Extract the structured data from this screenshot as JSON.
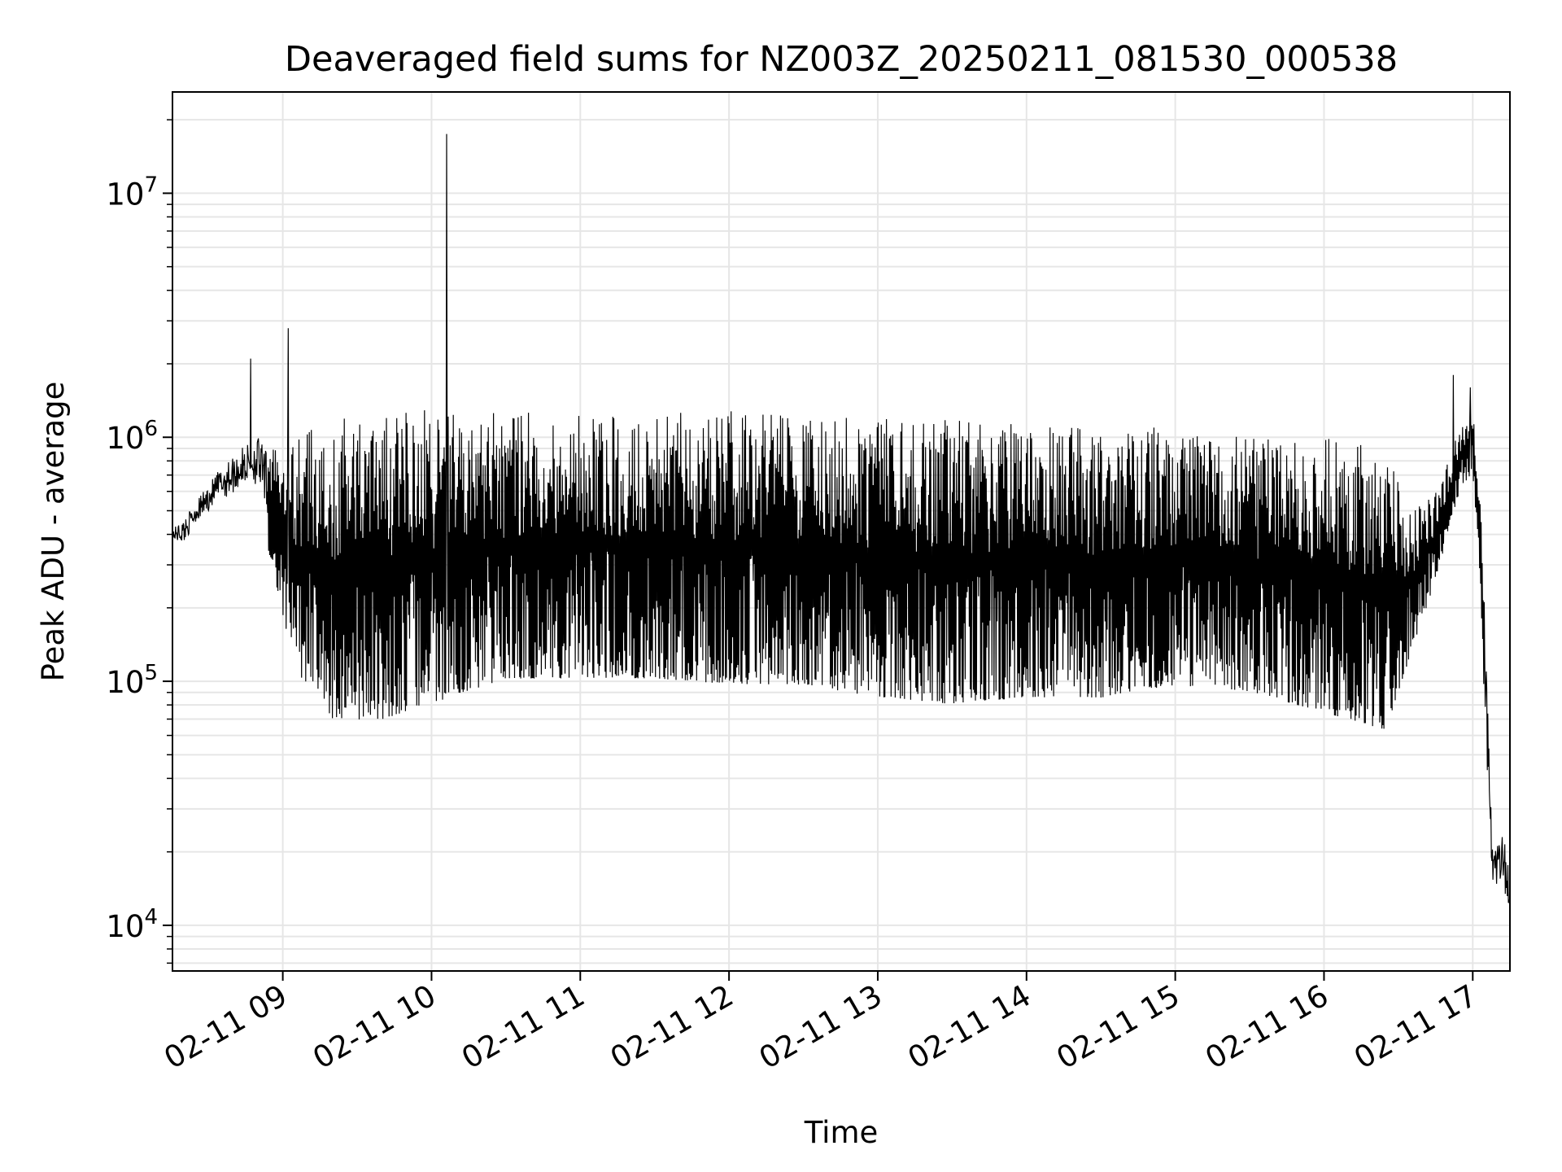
{
  "chart_data": {
    "type": "line",
    "title": "Deaveraged field sums for NZ003Z_20250211_081530_000538",
    "xlabel": "Time",
    "ylabel": "Peak ADU - average",
    "xscale": "time",
    "yscale": "log",
    "xlim": [
      "2025-02-11 08:15:30",
      "2025-02-11 17:15"
    ],
    "ylim": [
      6500,
      26000000
    ],
    "x_ticks": [
      "02-11 09",
      "02-11 10",
      "02-11 11",
      "02-11 12",
      "02-11 13",
      "02-11 14",
      "02-11 15",
      "02-11 16",
      "02-11 17"
    ],
    "x_tick_hours": [
      9,
      10,
      11,
      12,
      13,
      14,
      15,
      16,
      17
    ],
    "y_ticks": [
      {
        "value": 10000,
        "base": "10",
        "exp": "4"
      },
      {
        "value": 100000,
        "base": "10",
        "exp": "5"
      },
      {
        "value": 1000000,
        "base": "10",
        "exp": "6"
      },
      {
        "value": 10000000,
        "base": "10",
        "exp": "7"
      }
    ],
    "grid": true,
    "line_color": "#000000",
    "grid_color": "#e6e6e6",
    "series": [
      {
        "envelope_points": [
          {
            "time": "2025-02-11 08:15:30",
            "low": 350000,
            "high": 430000
          },
          {
            "time": "2025-02-11 08:20",
            "low": 320000,
            "high": 480000
          },
          {
            "time": "2025-02-11 08:25",
            "low": 400000,
            "high": 560000
          },
          {
            "time": "2025-02-11 08:35",
            "low": 450000,
            "high": 800000
          },
          {
            "time": "2025-02-11 08:45",
            "low": 500000,
            "high": 1000000
          },
          {
            "time": "2025-02-11 08:50",
            "low": 480000,
            "high": 1100000
          },
          {
            "time": "2025-02-11 08:55",
            "low": 300000,
            "high": 900000
          },
          {
            "time": "2025-02-11 09:05",
            "low": 100000,
            "high": 1000000
          },
          {
            "time": "2025-02-11 09:20",
            "low": 60000,
            "high": 1200000
          },
          {
            "time": "2025-02-11 09:40",
            "low": 60000,
            "high": 1250000
          },
          {
            "time": "2025-02-11 10:00",
            "low": 70000,
            "high": 1300000
          },
          {
            "time": "2025-02-11 10:30",
            "low": 90000,
            "high": 1250000
          },
          {
            "time": "2025-02-11 11:00",
            "low": 90000,
            "high": 1300000
          },
          {
            "time": "2025-02-11 11:30",
            "low": 90000,
            "high": 1300000
          },
          {
            "time": "2025-02-11 12:00",
            "low": 85000,
            "high": 1300000
          },
          {
            "time": "2025-02-11 12:30",
            "low": 85000,
            "high": 1200000
          },
          {
            "time": "2025-02-11 13:00",
            "low": 75000,
            "high": 1200000
          },
          {
            "time": "2025-02-11 13:30",
            "low": 70000,
            "high": 1200000
          },
          {
            "time": "2025-02-11 14:00",
            "low": 75000,
            "high": 1150000
          },
          {
            "time": "2025-02-11 14:30",
            "low": 75000,
            "high": 1100000
          },
          {
            "time": "2025-02-11 15:00",
            "low": 85000,
            "high": 1100000
          },
          {
            "time": "2025-02-11 15:30",
            "low": 80000,
            "high": 1000000
          },
          {
            "time": "2025-02-11 16:00",
            "low": 65000,
            "high": 1000000
          },
          {
            "time": "2025-02-11 16:25",
            "low": 55000,
            "high": 900000
          },
          {
            "time": "2025-02-11 16:35",
            "low": 120000,
            "high": 500000
          },
          {
            "time": "2025-02-11 16:45",
            "low": 250000,
            "high": 600000
          },
          {
            "time": "2025-02-11 16:55",
            "low": 600000,
            "high": 1100000
          },
          {
            "time": "2025-02-11 17:00",
            "low": 700000,
            "high": 1300000
          },
          {
            "time": "2025-02-11 17:03",
            "low": 250000,
            "high": 600000
          },
          {
            "time": "2025-02-11 17:06",
            "low": 30000,
            "high": 100000
          },
          {
            "time": "2025-02-11 17:08",
            "low": 11000,
            "high": 25000
          },
          {
            "time": "2025-02-11 17:12",
            "low": 12000,
            "high": 28000
          },
          {
            "time": "2025-02-11 17:15",
            "low": 10000,
            "high": 20000
          }
        ],
        "spikes": [
          {
            "time": "2025-02-11 08:47",
            "value": 2100000
          },
          {
            "time": "2025-02-11 09:02",
            "value": 2800000
          },
          {
            "time": "2025-02-11 10:06",
            "value": 17500000
          },
          {
            "time": "2025-02-11 16:52",
            "value": 1800000
          },
          {
            "time": "2025-02-11 16:59",
            "value": 1600000
          }
        ]
      }
    ]
  }
}
